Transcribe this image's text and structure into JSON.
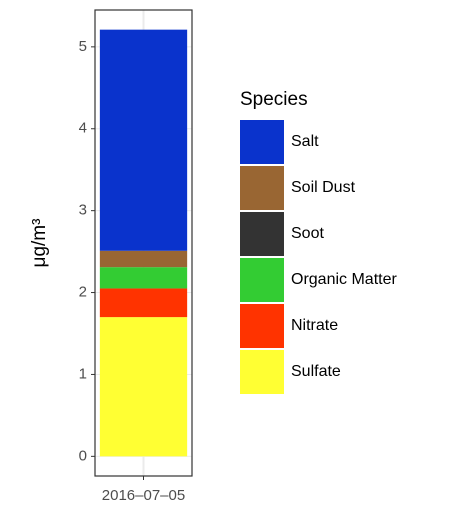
{
  "chart_data": {
    "type": "stacked-bar",
    "y_label": "μg/m³",
    "legend_title": "Species",
    "categories": [
      "2016–07–05"
    ],
    "series": [
      {
        "name": "Sulfate",
        "color": "#ffff33",
        "values": [
          1.7
        ]
      },
      {
        "name": "Nitrate",
        "color": "#ff3300",
        "values": [
          0.35
        ]
      },
      {
        "name": "Organic Matter",
        "color": "#33cc33",
        "values": [
          0.26
        ]
      },
      {
        "name": "Soot",
        "color": "#333333",
        "values": [
          0
        ]
      },
      {
        "name": "Soil Dust",
        "color": "#996633",
        "values": [
          0.2
        ]
      },
      {
        "name": "Salt",
        "color": "#0a33cc",
        "values": [
          2.7
        ]
      }
    ],
    "ylim": [
      -0.24,
      5.45
    ],
    "yticks": [
      0,
      1,
      2,
      3,
      4,
      5
    ],
    "grid": true
  }
}
